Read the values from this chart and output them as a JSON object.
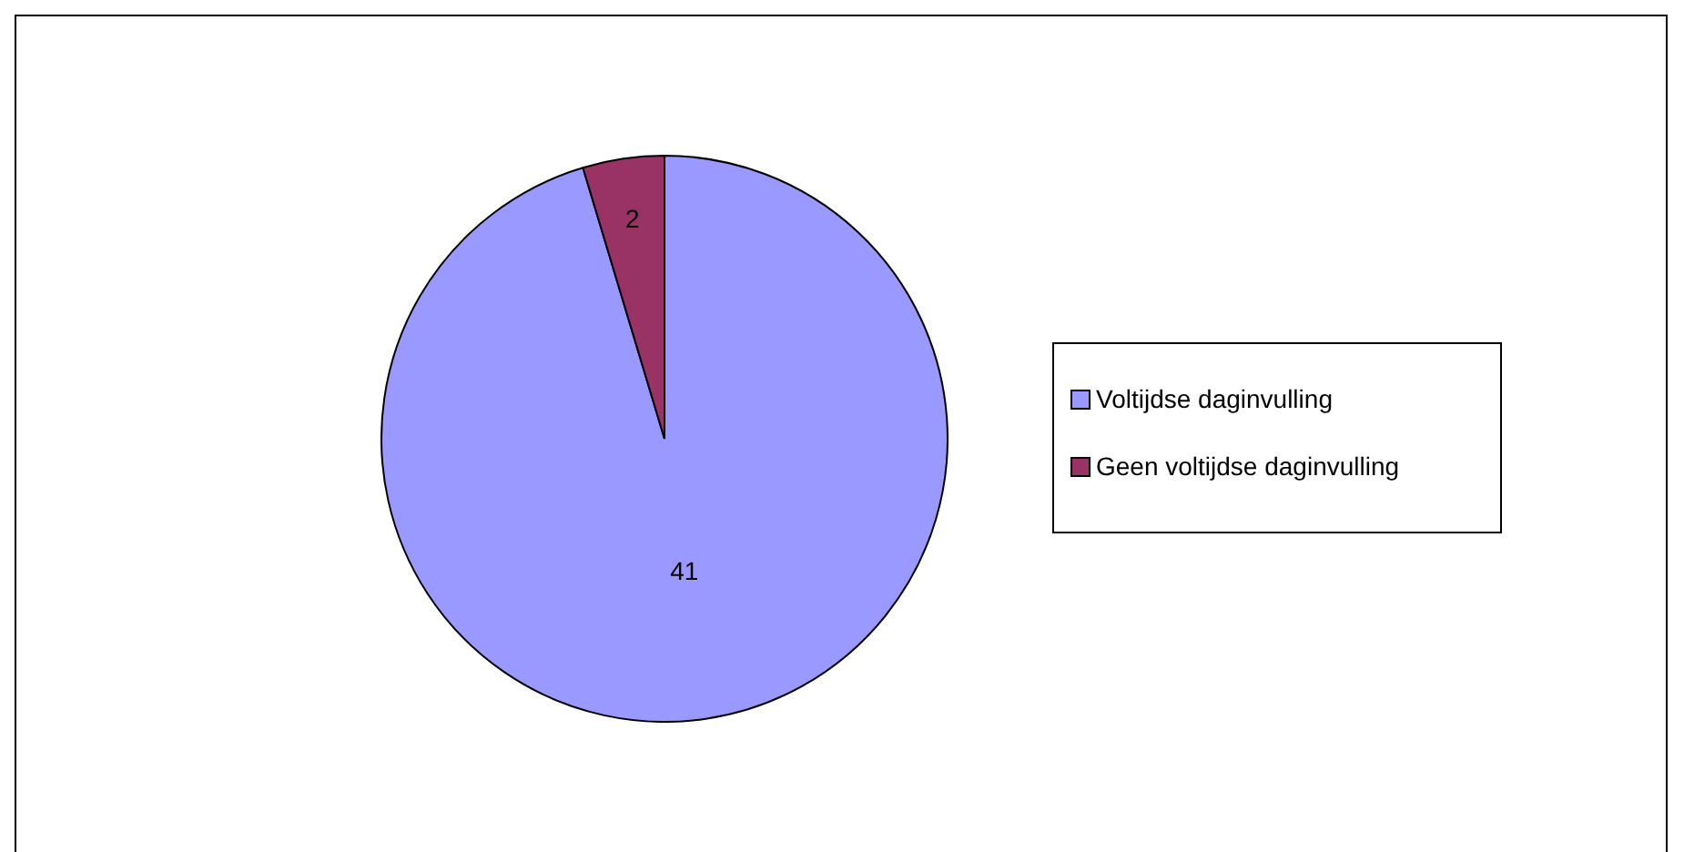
{
  "chart_data": {
    "type": "pie",
    "categories": [
      "Voltijdse daginvulling",
      "Geen voltijdse daginvulling"
    ],
    "values": [
      41,
      2
    ],
    "colors": [
      "#9999ff",
      "#993366"
    ],
    "data_labels": true,
    "legend": "right"
  }
}
